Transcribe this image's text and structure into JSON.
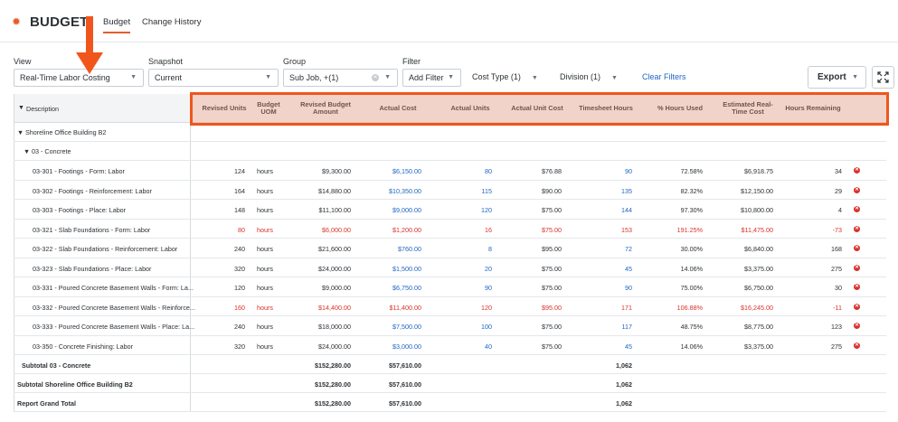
{
  "app": {
    "title": "BUDGET",
    "accent": "#e35d2b",
    "icon": "gear-icon"
  },
  "tabs": [
    {
      "label": "Budget",
      "active": true
    },
    {
      "label": "Change History",
      "active": false
    }
  ],
  "filters": {
    "view_label": "View",
    "view_value": "Real-Time Labor Costing",
    "snapshot_label": "Snapshot",
    "snapshot_value": "Current",
    "group_label": "Group",
    "group_value": "Sub Job, +(1)",
    "filter_label": "Filter",
    "add_filter": "Add Filter",
    "cost_type": "Cost Type (1)",
    "division": "Division (1)",
    "clear": "Clear Filters",
    "export": "Export"
  },
  "columns": {
    "description": "Description",
    "revised_units": "Revised Units",
    "budget_uom": "Budget UOM",
    "revised_budget": "Revised Budget Amount",
    "actual_cost": "Actual Cost",
    "actual_units": "Actual Units",
    "actual_unit_cost": "Actual Unit Cost",
    "timesheet_hours": "Timesheet Hours",
    "hours_used": "% Hours Used",
    "est_cost": "Estimated Real-Time Cost",
    "hours_remaining": "Hours Remaining"
  },
  "groups": {
    "job": "Shoreline Office Building B2",
    "division": "03 - Concrete"
  },
  "rows": [
    {
      "desc": "03-301 - Footings - Form: Labor",
      "units": "124",
      "uom": "hours",
      "budget": "$9,300.00",
      "cost": "$6,150.00",
      "aunits": "80",
      "ucost": "$76.88",
      "hours": "90",
      "pct": "72.58%",
      "est": "$6,918.75",
      "rem": "34",
      "over": false
    },
    {
      "desc": "03-302 - Footings - Reinforcement: Labor",
      "units": "164",
      "uom": "hours",
      "budget": "$14,880.00",
      "cost": "$10,350.00",
      "aunits": "115",
      "ucost": "$90.00",
      "hours": "135",
      "pct": "82.32%",
      "est": "$12,150.00",
      "rem": "29",
      "over": false
    },
    {
      "desc": "03-303 - Footings - Place: Labor",
      "units": "148",
      "uom": "hours",
      "budget": "$11,100.00",
      "cost": "$9,000.00",
      "aunits": "120",
      "ucost": "$75.00",
      "hours": "144",
      "pct": "97.30%",
      "est": "$10,800.00",
      "rem": "4",
      "over": false
    },
    {
      "desc": "03-321 - Slab Foundations - Form: Labor",
      "units": "80",
      "uom": "hours",
      "budget": "$6,000.00",
      "cost": "$1,200.00",
      "aunits": "16",
      "ucost": "$75.00",
      "hours": "153",
      "pct": "191.25%",
      "est": "$11,475.00",
      "rem": "-73",
      "over": true
    },
    {
      "desc": "03-322 - Slab Foundations - Reinforcement: Labor",
      "units": "240",
      "uom": "hours",
      "budget": "$21,600.00",
      "cost": "$760.00",
      "aunits": "8",
      "ucost": "$95.00",
      "hours": "72",
      "pct": "30.00%",
      "est": "$6,840.00",
      "rem": "168",
      "over": false
    },
    {
      "desc": "03-323 - Slab Foundations - Place: Labor",
      "units": "320",
      "uom": "hours",
      "budget": "$24,000.00",
      "cost": "$1,500.00",
      "aunits": "20",
      "ucost": "$75.00",
      "hours": "45",
      "pct": "14.06%",
      "est": "$3,375.00",
      "rem": "275",
      "over": false
    },
    {
      "desc": "03-331 - Poured Concrete Basement Walls - Form: La...",
      "units": "120",
      "uom": "hours",
      "budget": "$9,000.00",
      "cost": "$6,750.00",
      "aunits": "90",
      "ucost": "$75.00",
      "hours": "90",
      "pct": "75.00%",
      "est": "$6,750.00",
      "rem": "30",
      "over": false
    },
    {
      "desc": "03-332 - Poured Concrete Basement Walls - Reinforce...",
      "units": "160",
      "uom": "hours",
      "budget": "$14,400.00",
      "cost": "$11,400.00",
      "aunits": "120",
      "ucost": "$95.00",
      "hours": "171",
      "pct": "106.88%",
      "est": "$16,245.00",
      "rem": "-11",
      "over": true
    },
    {
      "desc": "03-333 - Poured Concrete Basement Walls - Place: La...",
      "units": "240",
      "uom": "hours",
      "budget": "$18,000.00",
      "cost": "$7,500.00",
      "aunits": "100",
      "ucost": "$75.00",
      "hours": "117",
      "pct": "48.75%",
      "est": "$8,775.00",
      "rem": "123",
      "over": false
    },
    {
      "desc": "03-350 - Concrete Finishing: Labor",
      "units": "320",
      "uom": "hours",
      "budget": "$24,000.00",
      "cost": "$3,000.00",
      "aunits": "40",
      "ucost": "$75.00",
      "hours": "45",
      "pct": "14.06%",
      "est": "$3,375.00",
      "rem": "275",
      "over": false
    }
  ],
  "subtotals": [
    {
      "label": "Subtotal 03 - Concrete",
      "budget": "$152,280.00",
      "cost": "$57,610.00",
      "hours": "1,062"
    },
    {
      "label": "Subtotal Shoreline Office Building B2",
      "budget": "$152,280.00",
      "cost": "$57,610.00",
      "hours": "1,062"
    },
    {
      "label": "Report Grand Total",
      "budget": "$152,280.00",
      "cost": "$57,610.00",
      "hours": "1,062"
    }
  ],
  "colors": {
    "link": "#2066c4",
    "over_budget": "#d9322b",
    "highlight": "#f0561c"
  }
}
